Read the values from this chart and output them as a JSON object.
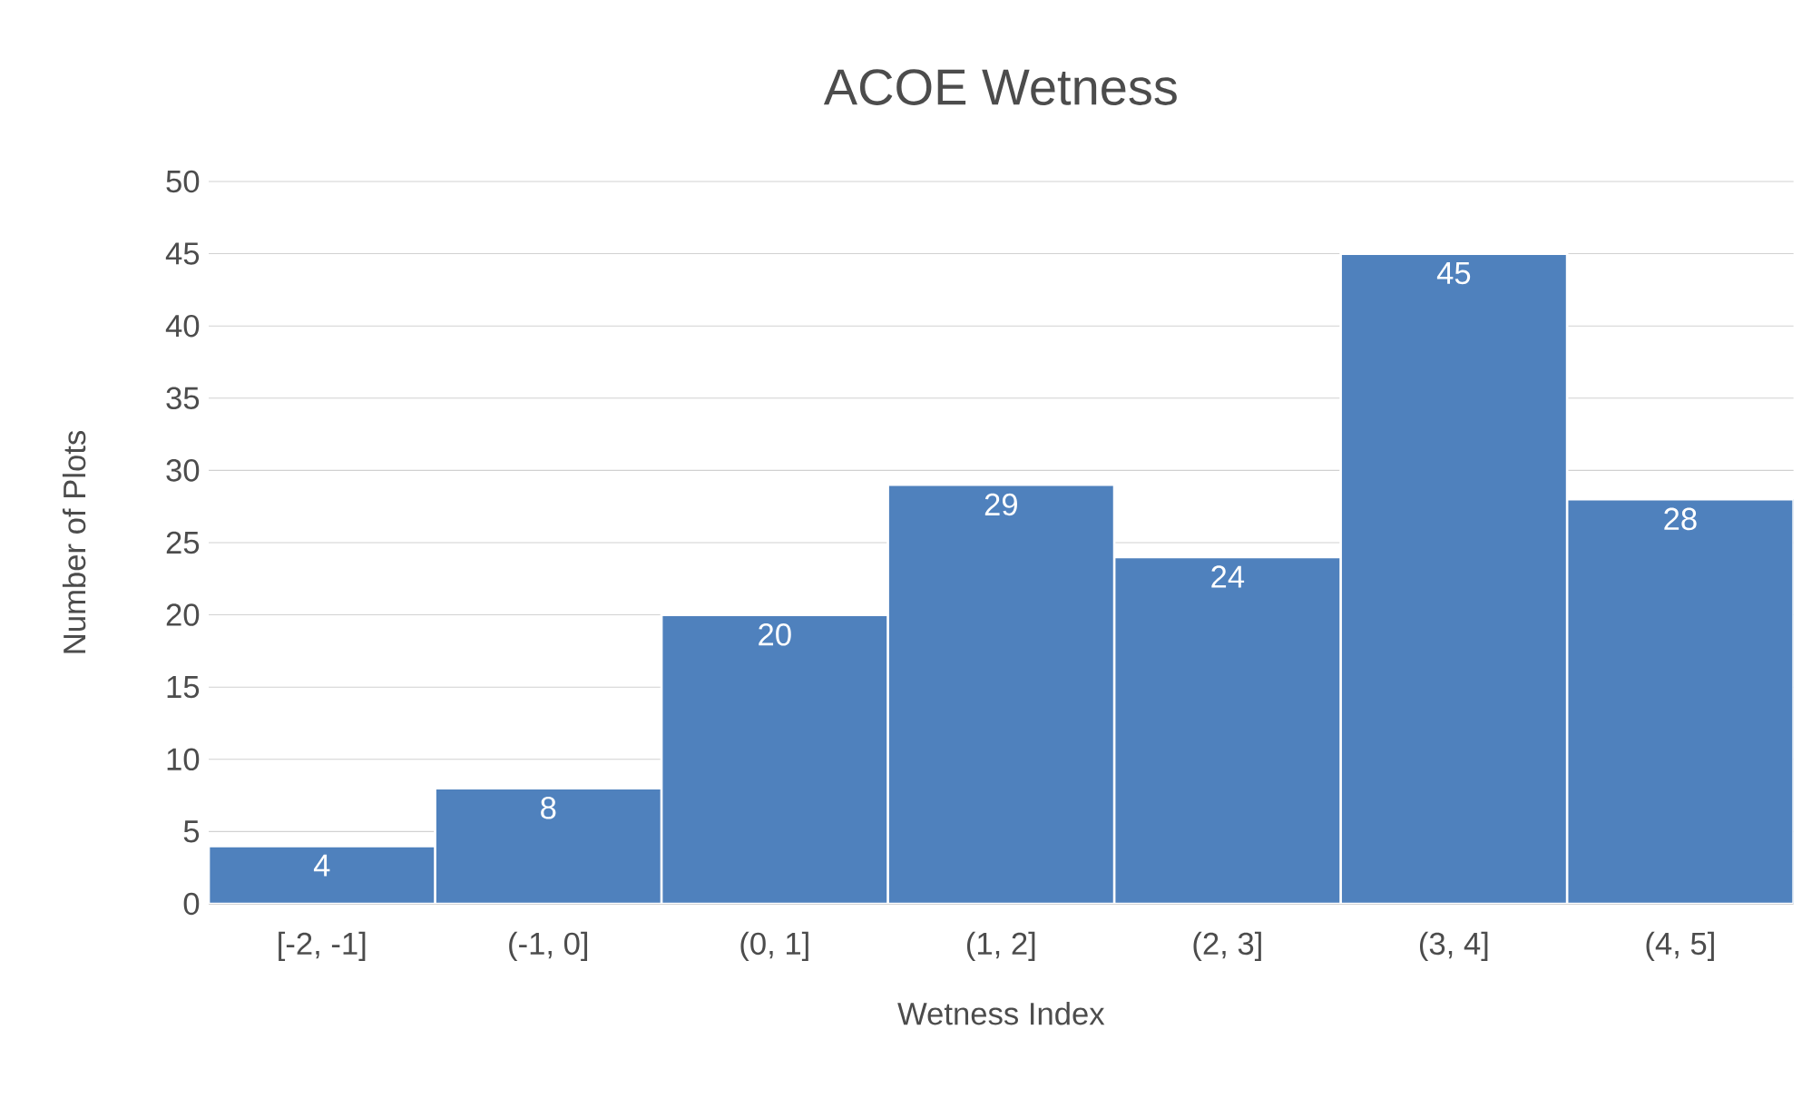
{
  "chart_data": {
    "type": "bar",
    "title": "ACOE Wetness",
    "xlabel": "Wetness Index",
    "ylabel": "Number of Plots",
    "categories": [
      "[-2, -1]",
      "(-1, 0]",
      "(0, 1]",
      "(1, 2]",
      "(2, 3]",
      "(3, 4]",
      "(4, 5]"
    ],
    "values": [
      4,
      8,
      20,
      29,
      24,
      45,
      28
    ],
    "color": "#4f81bd",
    "ylim": [
      0,
      50
    ],
    "yticks": [
      0,
      5,
      10,
      15,
      20,
      25,
      30,
      35,
      40,
      45,
      50
    ],
    "grid": "y",
    "data_labels": true
  }
}
